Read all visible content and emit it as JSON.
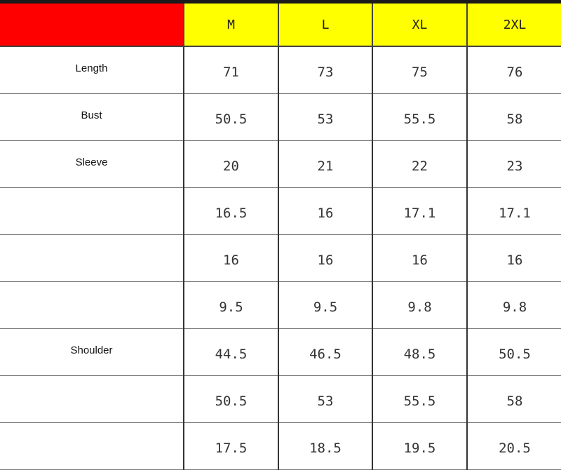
{
  "colors": {
    "header_corner": "#ff0000",
    "header_sizes": "#ffff00"
  },
  "sizes": [
    "M",
    "L",
    "XL",
    "2XL"
  ],
  "rows": [
    {
      "label": "Length",
      "values": [
        "71",
        "73",
        "75",
        "76"
      ]
    },
    {
      "label": "Bust",
      "values": [
        "50.5",
        "53",
        "55.5",
        "58"
      ]
    },
    {
      "label": "Sleeve",
      "values": [
        "20",
        "21",
        "22",
        "23"
      ]
    },
    {
      "label": "",
      "values": [
        "16.5",
        "16",
        "17.1",
        "17.1"
      ]
    },
    {
      "label": "",
      "values": [
        "16",
        "16",
        "16",
        "16"
      ]
    },
    {
      "label": "",
      "values": [
        "9.5",
        "9.5",
        "9.8",
        "9.8"
      ]
    },
    {
      "label": "Shoulder",
      "values": [
        "44.5",
        "46.5",
        "48.5",
        "50.5"
      ]
    },
    {
      "label": "",
      "values": [
        "50.5",
        "53",
        "55.5",
        "58"
      ]
    },
    {
      "label": "",
      "values": [
        "17.5",
        "18.5",
        "19.5",
        "20.5"
      ]
    }
  ]
}
